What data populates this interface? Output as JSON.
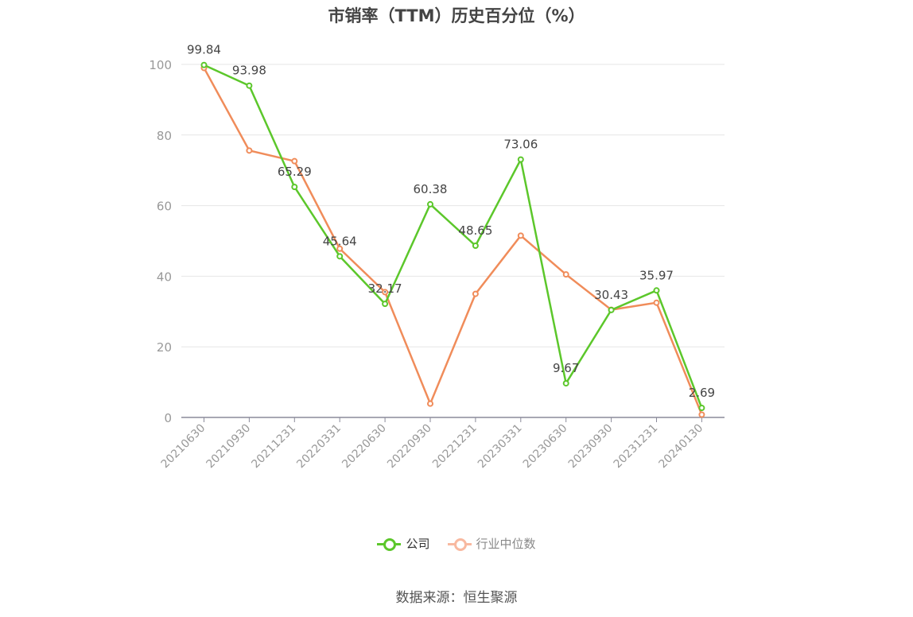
{
  "title": "市销率（TTM）历史百分位（%）",
  "source": "数据来源：恒生聚源",
  "colors": {
    "company": "#5cc72b",
    "industry": "#f08c5a",
    "industry_legend": "#f8b9a0"
  },
  "chart_data": {
    "type": "line",
    "title": "市销率（TTM）历史百分位（%）",
    "xlabel": "",
    "ylabel": "",
    "ylim": [
      0,
      100
    ],
    "yticks": [
      0,
      20,
      40,
      60,
      80,
      100
    ],
    "grid": true,
    "legend_position": "bottom",
    "categories": [
      "20210630",
      "20210930",
      "20211231",
      "20220331",
      "20220630",
      "20220930",
      "20221231",
      "20230331",
      "20230630",
      "20230930",
      "20231231",
      "20240130"
    ],
    "series": [
      {
        "name": "公司",
        "values": [
          99.84,
          93.98,
          65.29,
          45.64,
          32.17,
          60.38,
          48.65,
          73.06,
          9.67,
          30.43,
          35.97,
          2.69
        ],
        "labels_shown": true
      },
      {
        "name": "行业中位数",
        "values": [
          99.0,
          75.6,
          72.6,
          47.8,
          35.5,
          3.9,
          35.0,
          51.5,
          40.5,
          30.5,
          32.5,
          0.8
        ],
        "labels_shown": false
      }
    ]
  }
}
